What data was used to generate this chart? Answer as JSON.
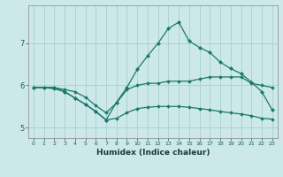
{
  "x": [
    0,
    1,
    2,
    3,
    4,
    5,
    6,
    7,
    8,
    9,
    10,
    11,
    12,
    13,
    14,
    15,
    16,
    17,
    18,
    19,
    20,
    21,
    22,
    23
  ],
  "line1": [
    5.95,
    5.95,
    5.95,
    5.9,
    5.85,
    5.72,
    5.52,
    5.35,
    5.58,
    5.9,
    6.0,
    6.05,
    6.05,
    6.1,
    6.1,
    6.1,
    6.15,
    6.2,
    6.2,
    6.2,
    6.2,
    6.05,
    6.0,
    5.95
  ],
  "line2": [
    5.95,
    5.95,
    5.95,
    5.85,
    5.7,
    5.55,
    5.38,
    5.18,
    5.6,
    5.95,
    6.38,
    6.7,
    7.0,
    7.35,
    7.5,
    7.05,
    6.9,
    6.78,
    6.55,
    6.4,
    6.28,
    6.08,
    5.85,
    5.42
  ],
  "line3": [
    5.95,
    5.95,
    5.92,
    5.85,
    5.7,
    5.55,
    5.38,
    5.18,
    5.22,
    5.35,
    5.45,
    5.48,
    5.5,
    5.5,
    5.5,
    5.48,
    5.45,
    5.42,
    5.38,
    5.35,
    5.32,
    5.28,
    5.22,
    5.2
  ],
  "color": "#1a7a6a",
  "bg_color": "#cce8e8",
  "grid_color": "#aad0d0",
  "xlabel": "Humidex (Indice chaleur)",
  "ylim": [
    4.75,
    7.9
  ],
  "yticks": [
    5,
    6,
    7
  ],
  "xticks": [
    0,
    1,
    2,
    3,
    4,
    5,
    6,
    7,
    8,
    9,
    10,
    11,
    12,
    13,
    14,
    15,
    16,
    17,
    18,
    19,
    20,
    21,
    22,
    23
  ]
}
